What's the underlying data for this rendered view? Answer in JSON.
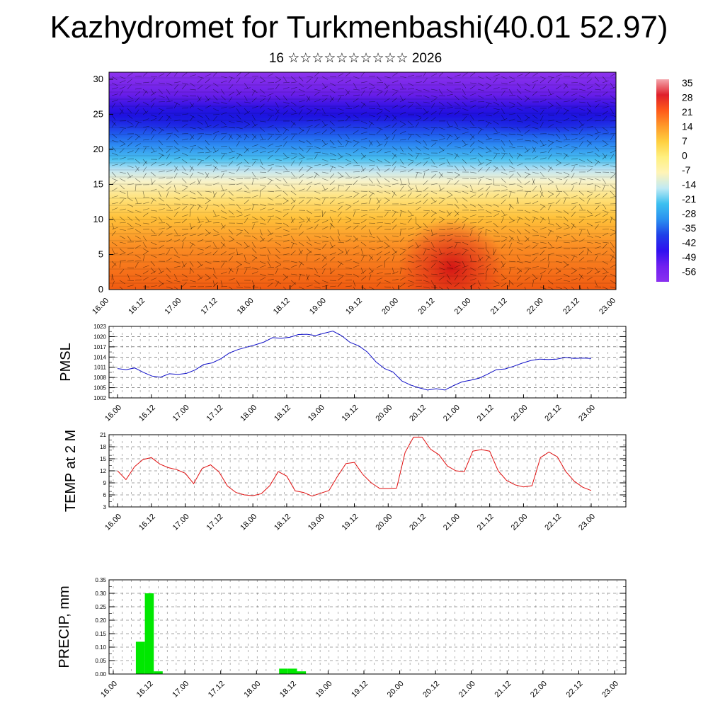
{
  "header": {
    "title": "Kazhydromet for Turkmenbashi(40.01 52.97)",
    "subtitle": "16 ☆☆☆☆☆☆☆☆☆☆ 2026"
  },
  "chart_data": [
    {
      "type": "heatmap",
      "title": "",
      "y_ticks": [
        "0",
        "5",
        "10",
        "15",
        "20",
        "25",
        "30"
      ],
      "ylim": [
        0,
        31
      ],
      "x_ticks": [
        "16.00",
        "16.12",
        "17.00",
        "17.12",
        "18.00",
        "18.12",
        "19.00",
        "19.12",
        "20.00",
        "20.12",
        "21.00",
        "21.12",
        "22.00",
        "22.12",
        "23.00"
      ],
      "colorbar": {
        "labels": [
          "35",
          "28",
          "21",
          "14",
          "7",
          "0",
          "-7",
          "-14",
          "-21",
          "-28",
          "-35",
          "-42",
          "-49",
          "-56"
        ],
        "colors": [
          "#f4a6ad",
          "#e0202a",
          "#ff5a1a",
          "#ff9a2a",
          "#ffd040",
          "#fff080",
          "#fff4b8",
          "#c0eaf4",
          "#3cc0f0",
          "#2a90f0",
          "#2040e8",
          "#3010f0",
          "#7020f0",
          "#8a30f0"
        ]
      },
      "wind_barbs": true
    },
    {
      "type": "line",
      "ylabel": "PMSL",
      "ylim": [
        1002,
        1023
      ],
      "y_ticks": [
        "1023",
        "1020",
        "1017",
        "1014",
        "1011",
        "1008",
        "1005",
        "1002"
      ],
      "x_ticks": [
        "16.00",
        "16.12",
        "17.00",
        "17.12",
        "18.00",
        "18.12",
        "19.00",
        "19.12",
        "20.00",
        "20.12",
        "21.00",
        "21.12",
        "22.00",
        "22.12",
        "23.00"
      ],
      "color": "#1010c8",
      "series": [
        {
          "values": [
            1010.6,
            1010.3,
            1010.8,
            1009.5,
            1008.4,
            1008.1,
            1009.1,
            1008.9,
            1009.2,
            1010.2,
            1011.8,
            1012.3,
            1013.5,
            1015.2,
            1016.2,
            1016.9,
            1017.6,
            1018.4,
            1019.7,
            1019.5,
            1019.8,
            1020.6,
            1020.7,
            1020.3,
            1021.0,
            1021.6,
            1020.3,
            1018.3,
            1017.3,
            1015.5,
            1012.6,
            1010.6,
            1009.6,
            1007.0,
            1005.8,
            1005.0,
            1004.3,
            1004.7,
            1004.3,
            1005.6,
            1006.7,
            1007.2,
            1007.8,
            1009.0,
            1010.3,
            1010.5,
            1011.3,
            1012.2,
            1013.0,
            1013.4,
            1013.3,
            1013.4,
            1013.9,
            1013.6,
            1013.7,
            1013.6
          ]
        }
      ]
    },
    {
      "type": "line",
      "ylabel": "TEMP at 2 M",
      "ylim": [
        3,
        21
      ],
      "y_ticks": [
        "21",
        "18",
        "15",
        "12",
        "9",
        "6",
        "3"
      ],
      "x_ticks": [
        "16.00",
        "16.12",
        "17.00",
        "17.12",
        "18.00",
        "18.12",
        "19.00",
        "19.12",
        "20.00",
        "20.12",
        "21.00",
        "21.12",
        "22.00",
        "22.12",
        "23.00"
      ],
      "color": "#e01010",
      "series": [
        {
          "values": [
            12.0,
            9.8,
            13.0,
            14.8,
            15.3,
            13.7,
            12.8,
            12.3,
            11.4,
            8.8,
            12.6,
            13.5,
            11.7,
            8.2,
            6.6,
            6.0,
            5.8,
            6.3,
            8.3,
            11.8,
            10.7,
            7.0,
            6.6,
            5.7,
            6.4,
            7.1,
            10.6,
            13.8,
            14.1,
            11.1,
            9.0,
            7.6,
            7.6,
            7.7,
            16.6,
            20.4,
            20.4,
            17.4,
            16.0,
            13.2,
            12.0,
            11.8,
            16.9,
            17.3,
            16.9,
            12.0,
            9.6,
            8.5,
            8.0,
            8.3,
            15.3,
            16.7,
            15.5,
            11.8,
            9.4,
            7.9,
            7.1
          ]
        }
      ]
    },
    {
      "type": "bar",
      "ylabel": "PRECIP, mm",
      "ylim": [
        0,
        0.35
      ],
      "y_ticks": [
        "0.35",
        "0.30",
        "0.25",
        "0.20",
        "0.15",
        "0.10",
        "0.05",
        "0.00"
      ],
      "x_ticks": [
        "16.00",
        "16.12",
        "17.00",
        "17.12",
        "18.00",
        "18.12",
        "19.00",
        "19.12",
        "20.00",
        "20.12",
        "21.00",
        "21.12",
        "22.00",
        "22.12",
        "23.00"
      ],
      "color": "#00e800",
      "series": [
        {
          "values": [
            0,
            0,
            0,
            0.12,
            0.3,
            0.01,
            0,
            0,
            0,
            0,
            0,
            0,
            0,
            0,
            0,
            0,
            0,
            0,
            0,
            0.02,
            0.02,
            0.01,
            0,
            0,
            0,
            0,
            0,
            0,
            0,
            0,
            0,
            0,
            0,
            0,
            0,
            0,
            0,
            0,
            0,
            0,
            0,
            0,
            0,
            0,
            0,
            0,
            0,
            0,
            0,
            0,
            0,
            0,
            0,
            0,
            0,
            0
          ]
        }
      ]
    }
  ]
}
